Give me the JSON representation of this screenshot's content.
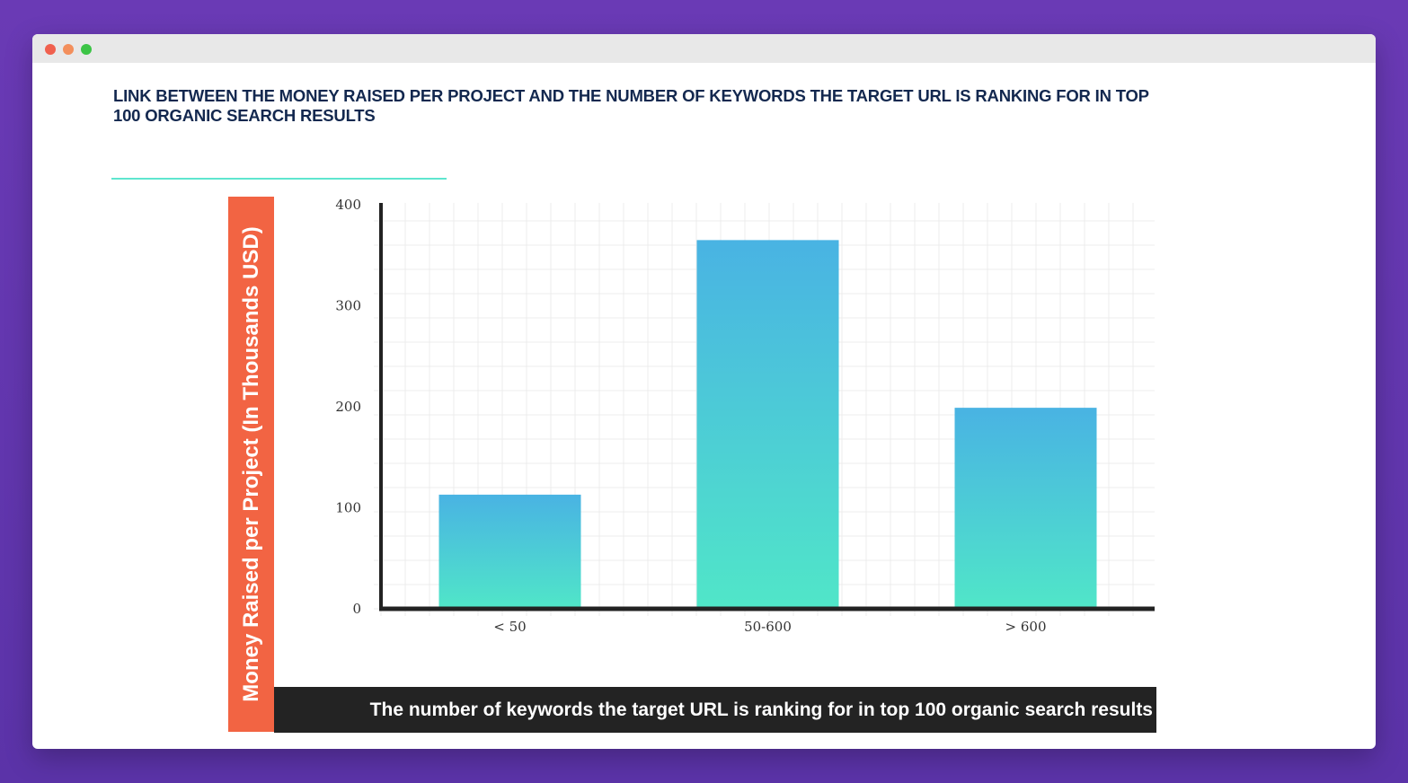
{
  "window": {
    "controls": [
      "close",
      "minimize",
      "maximize"
    ],
    "colors": {
      "close": "#f0604e",
      "minimize": "#f38f5c",
      "maximize": "#3cc446"
    }
  },
  "chart_data": {
    "type": "bar",
    "title": "LINK BETWEEN THE MONEY RAISED PER PROJECT AND THE NUMBER OF KEYWORDS THE TARGET URL IS RANKING FOR IN TOP 100 ORGANIC SEARCH RESULTS",
    "xlabel": "The number of keywords the target URL is ranking for in top 100 organic search results",
    "ylabel": "Money Raised per Project (In Thousands USD)",
    "categories": [
      "< 50",
      "50-600",
      "> 600"
    ],
    "values": [
      113,
      365,
      199
    ],
    "ylim": [
      0,
      400
    ],
    "yticks": [
      0,
      100,
      200,
      300,
      400
    ],
    "grid": true,
    "colors": {
      "bar_top": "#49b3e3",
      "bar_bottom": "#50e6c8",
      "ylabel_bg": "#f26443",
      "xlabel_bg": "#232323",
      "title_rule": "#5ee6cf",
      "title_text": "#13284f",
      "axis": "#222222",
      "grid": "#ececec"
    }
  }
}
